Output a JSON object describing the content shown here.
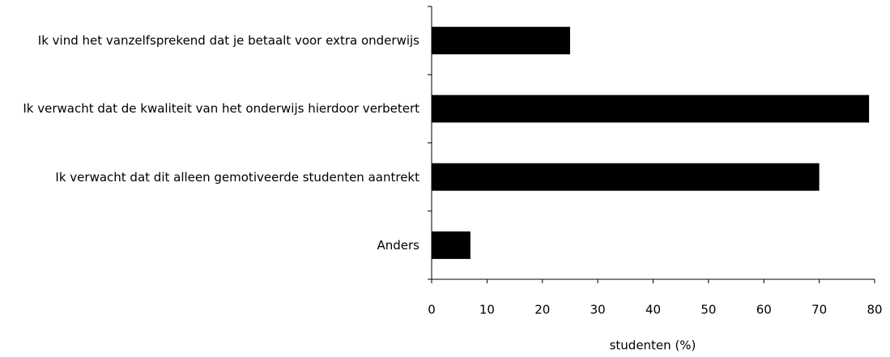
{
  "chart_data": {
    "type": "barh",
    "categories": [
      "Ik vind het vanzelfsprekend dat je betaalt voor extra onderwijs",
      "Ik verwacht dat de kwaliteit van het onderwijs hierdoor verbetert",
      "Ik verwacht dat dit alleen gemotiveerde studenten aantrekt",
      "Anders"
    ],
    "values": [
      25,
      79,
      70,
      7
    ],
    "color": "#000000",
    "xlabel": "studenten (%)",
    "xlim": [
      0,
      80
    ],
    "xticks": [
      0,
      10,
      20,
      30,
      40,
      50,
      60,
      70,
      80
    ],
    "grid": false
  }
}
